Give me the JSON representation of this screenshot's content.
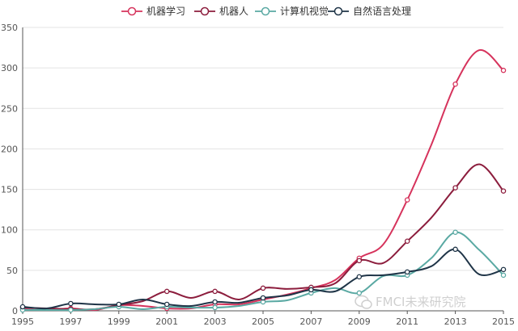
{
  "chart_data": {
    "type": "line",
    "title": "",
    "xlabel": "",
    "ylabel": "",
    "x": [
      1995,
      1996,
      1997,
      1998,
      1999,
      2000,
      2001,
      2002,
      2003,
      2004,
      2005,
      2006,
      2007,
      2008,
      2009,
      2010,
      2011,
      2012,
      2013,
      2014,
      2015
    ],
    "xlim": [
      1995,
      2015
    ],
    "ylim": [
      0,
      350
    ],
    "x_ticks": [
      "1995",
      "1997",
      "1999",
      "2001",
      "2003",
      "2005",
      "2007",
      "2009",
      "2011",
      "2013",
      "2015"
    ],
    "y_ticks": [
      "0",
      "50",
      "100",
      "150",
      "200",
      "250",
      "300",
      "350"
    ],
    "grid": "horizontal",
    "legend_position": "top-center",
    "series": [
      {
        "name": "机器学习",
        "color": "#d6335c",
        "values": [
          2,
          1,
          3,
          1,
          7,
          6,
          3,
          3,
          8,
          8,
          14,
          20,
          28,
          38,
          65,
          82,
          137,
          205,
          280,
          322,
          297
        ]
      },
      {
        "name": "机器人",
        "color": "#8c1d3d",
        "values": [
          4,
          3,
          2,
          2,
          7,
          12,
          24,
          16,
          24,
          14,
          28,
          27,
          29,
          34,
          62,
          59,
          86,
          115,
          152,
          181,
          148
        ]
      },
      {
        "name": "计算机视觉",
        "color": "#5aa9a3",
        "values": [
          1,
          1,
          1,
          2,
          5,
          2,
          5,
          4,
          4,
          6,
          11,
          13,
          22,
          28,
          22,
          43,
          44,
          65,
          97,
          75,
          44
        ]
      },
      {
        "name": "自然语言处理",
        "color": "#1f3447",
        "values": [
          5,
          3,
          9,
          8,
          8,
          14,
          8,
          6,
          11,
          10,
          16,
          19,
          26,
          24,
          42,
          44,
          48,
          55,
          76,
          45,
          51
        ]
      }
    ]
  },
  "watermark": {
    "text": "FMCI未来研究院"
  }
}
